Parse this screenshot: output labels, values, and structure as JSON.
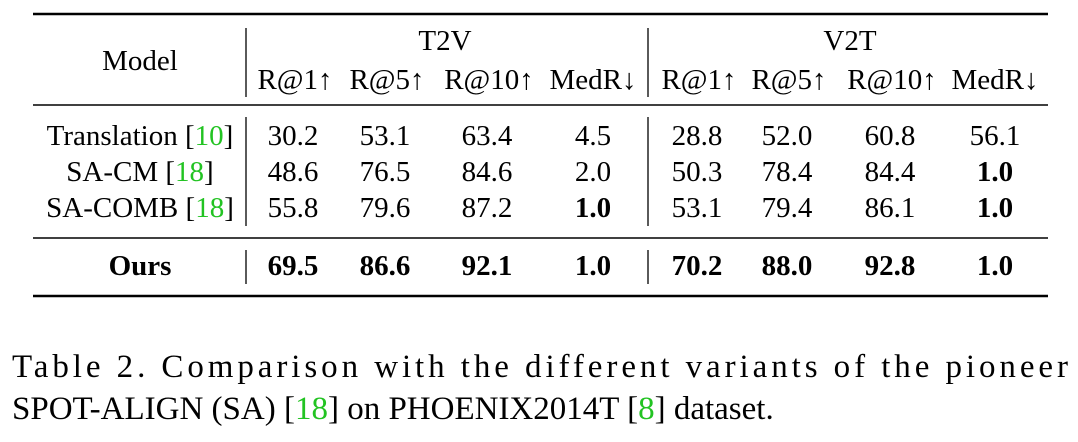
{
  "table": {
    "header": {
      "model": "Model",
      "groups": [
        "T2V",
        "V2T"
      ],
      "columns": [
        "R@1↑",
        "R@5↑",
        "R@10↑",
        "MedR↓",
        "R@1↑",
        "R@5↑",
        "R@10↑",
        "MedR↓"
      ]
    },
    "rows": [
      {
        "model": [
          "Translation [",
          "10",
          "]"
        ],
        "values": [
          "30.2",
          "53.1",
          "63.4",
          "4.5",
          "28.8",
          "52.0",
          "60.8",
          "56.1"
        ]
      },
      {
        "model": [
          "SA-CM [",
          "18",
          "]"
        ],
        "values": [
          "48.6",
          "76.5",
          "84.6",
          "2.0",
          "50.3",
          "78.4",
          "84.4",
          "1.0"
        ]
      },
      {
        "model": [
          "SA-COMB [",
          "18",
          "]"
        ],
        "values": [
          "55.8",
          "79.6",
          "87.2",
          "1.0",
          "53.1",
          "79.4",
          "86.1",
          "1.0"
        ]
      },
      {
        "model": [
          "Ours"
        ],
        "values": [
          "69.5",
          "86.6",
          "92.1",
          "1.0",
          "70.2",
          "88.0",
          "92.8",
          "1.0"
        ]
      }
    ]
  },
  "caption": [
    [
      "Table 2.  Comparison with the different variants of the pioneer"
    ],
    [
      "SPOT-ALIGN (SA) [",
      "18",
      "] on PHOENIX2014T [",
      "8",
      "] dataset."
    ]
  ]
}
